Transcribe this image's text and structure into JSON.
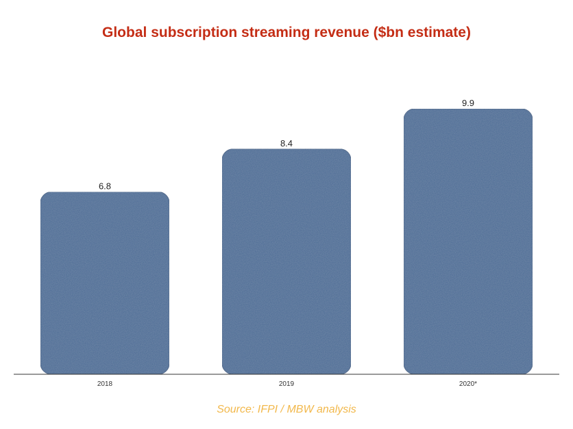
{
  "chart_data": {
    "type": "bar",
    "title": "Global subscription streaming revenue ($bn estimate)",
    "categories": [
      "2018",
      "2019",
      "2020*"
    ],
    "values": [
      6.8,
      8.4,
      9.9
    ],
    "data_labels": [
      "6.8",
      "8.4",
      "9.9"
    ],
    "xlabel": "",
    "ylabel": "",
    "ylim": [
      0,
      13.6
    ],
    "grid": false,
    "legend": "none",
    "source": "Source: IFPI / MBW analysis",
    "colors": {
      "bar": "#4a6a94",
      "bar_stroke": "#3d5a80",
      "title": "#c42d15",
      "source": "#f2b84b",
      "axis": "#333333"
    }
  }
}
